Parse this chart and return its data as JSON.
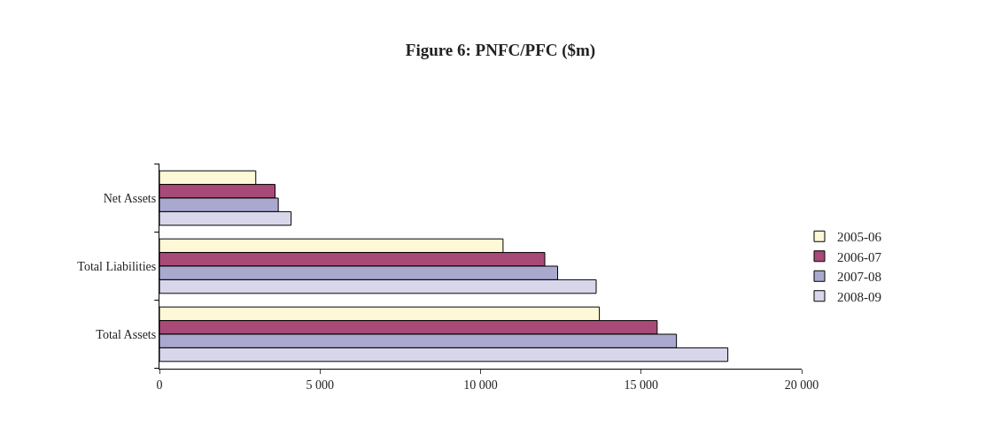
{
  "chart_data": {
    "type": "bar",
    "orientation": "horizontal",
    "title": "Figure 6: PNFC/PFC ($m)",
    "categories": [
      "Net Assets",
      "Total Liabilities",
      "Total Assets"
    ],
    "series": [
      {
        "name": "2005-06",
        "color": "#fdf8d5",
        "values": [
          3000,
          10700,
          13700
        ]
      },
      {
        "name": "2006-07",
        "color": "#a84a78",
        "values": [
          3600,
          12000,
          15500
        ]
      },
      {
        "name": "2007-08",
        "color": "#a9a9d0",
        "values": [
          3700,
          12400,
          16100
        ]
      },
      {
        "name": "2008-09",
        "color": "#d8d6ea",
        "values": [
          4100,
          13600,
          17700
        ]
      }
    ],
    "xlim": [
      0,
      20000
    ],
    "xticks": [
      {
        "value": 0,
        "label": "0"
      },
      {
        "value": 5000,
        "label": "5 000"
      },
      {
        "value": 10000,
        "label": "10 000"
      },
      {
        "value": 15000,
        "label": "15 000"
      },
      {
        "value": 20000,
        "label": "20 000"
      }
    ],
    "grid": false,
    "legend": "right"
  }
}
